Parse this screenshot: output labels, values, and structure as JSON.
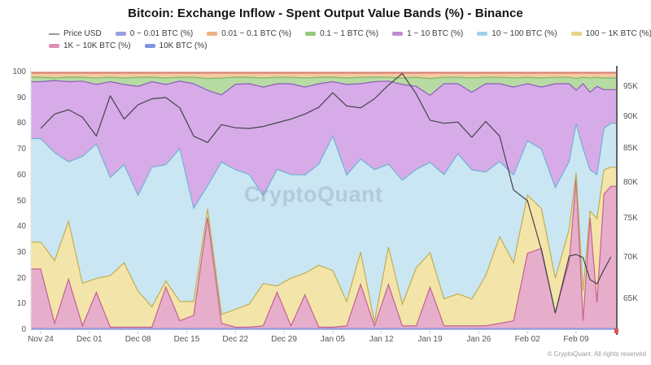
{
  "title": "Bitcoin: Exchange Inflow - Spent Output Value Bands (%) - Binance",
  "watermark": "CryptoQuant",
  "footer": "© CryptoQuant. All rights reserved",
  "legend_rows": [
    [
      {
        "label": "Price USD",
        "type": "line",
        "color": "#9a9a9a"
      },
      {
        "label": "0 ~ 0.01 BTC (%)",
        "type": "area",
        "color": "#98a0e0"
      },
      {
        "label": "0.01 ~ 0.1 BTC (%)",
        "type": "area",
        "color": "#f0b184"
      },
      {
        "label": "0.1 ~ 1 BTC (%)",
        "type": "area",
        "color": "#93c878"
      },
      {
        "label": "1 ~ 10 BTC (%)",
        "type": "area",
        "color": "#c08ad8"
      },
      {
        "label": "10 ~ 100 BTC (%)",
        "type": "area",
        "color": "#a2d2e8"
      },
      {
        "label": "100 ~ 1K BTC (%)",
        "type": "area",
        "color": "#e8d388"
      }
    ],
    [
      {
        "label": "1K ~ 10K BTC (%)",
        "type": "area",
        "color": "#dc8fb4"
      },
      {
        "label": "10K BTC (%)",
        "type": "area",
        "color": "#7e96e0"
      }
    ]
  ],
  "axes": {
    "left_ticks": [
      0,
      10,
      20,
      30,
      40,
      50,
      60,
      70,
      80,
      90,
      100
    ],
    "right_ticks": [
      {
        "label": "65K",
        "value": 65000
      },
      {
        "label": "70K",
        "value": 70000
      },
      {
        "label": "75K",
        "value": 75000
      },
      {
        "label": "80K",
        "value": 80000
      },
      {
        "label": "85K",
        "value": 85000
      },
      {
        "label": "90K",
        "value": 90000
      },
      {
        "label": "95K",
        "value": 95000
      }
    ],
    "x_ticks": [
      {
        "label": "Nov 24",
        "day": 0
      },
      {
        "label": "Dec 01",
        "day": 7
      },
      {
        "label": "Dec 08",
        "day": 14
      },
      {
        "label": "Dec 15",
        "day": 21
      },
      {
        "label": "Dec 22",
        "day": 28
      },
      {
        "label": "Dec 29",
        "day": 35
      },
      {
        "label": "Jan 05",
        "day": 42
      },
      {
        "label": "Jan 12",
        "day": 49
      },
      {
        "label": "Jan 19",
        "day": 56
      },
      {
        "label": "Jan 26",
        "day": 63
      },
      {
        "label": "Feb 02",
        "day": 70
      },
      {
        "label": "Feb 09",
        "day": 77
      }
    ]
  },
  "chart_data": {
    "type": "area",
    "stacked_percent": true,
    "x_axis": "days since Nov 24",
    "x_days": [
      0,
      2,
      4,
      6,
      8,
      10,
      12,
      14,
      16,
      18,
      20,
      22,
      24,
      26,
      28,
      30,
      32,
      34,
      36,
      38,
      40,
      42,
      44,
      46,
      48,
      50,
      52,
      54,
      56,
      58,
      60,
      62,
      64,
      66,
      68,
      70,
      72,
      74,
      76,
      77,
      78,
      79,
      80,
      81,
      82
    ],
    "ylim_left": [
      0,
      100
    ],
    "ylim_right_log": [
      61500,
      97500
    ],
    "series": [
      {
        "name": "10K BTC (%)",
        "fill": "#aeb6e8",
        "stroke": "#8894d8",
        "values": [
          0.6,
          0.6,
          0.6,
          0.6,
          0.6,
          0.6,
          0.6,
          0.6,
          0.6,
          0.6,
          0.6,
          0.6,
          0.6,
          0.6,
          0.6,
          0.6,
          0.6,
          0.6,
          0.6,
          0.6,
          0.6,
          0.6,
          0.6,
          0.6,
          0.6,
          0.6,
          0.6,
          0.6,
          0.6,
          0.6,
          0.6,
          0.6,
          0.6,
          0.6,
          0.6,
          0.6,
          0.6,
          0.6,
          0.6,
          0.6,
          0.6,
          0.6,
          0.6,
          0.6,
          0.6
        ]
      },
      {
        "name": "1K ~ 10K BTC (%)",
        "fill": "#e7aecb",
        "stroke": "#c75f92",
        "values": [
          23,
          2,
          19,
          1,
          14,
          0.5,
          0.5,
          0.5,
          0.5,
          16,
          3,
          5,
          43,
          2,
          0.5,
          0.5,
          1,
          14,
          1,
          13,
          0.5,
          0.5,
          1,
          17,
          1,
          17,
          1,
          1,
          16,
          1,
          1,
          1,
          1,
          2,
          3,
          29,
          31,
          6,
          26,
          58,
          3,
          43,
          10,
          52,
          55
        ]
      },
      {
        "name": "100 ~ 1K BTC (%)",
        "fill": "#f3e5a9",
        "stroke": "#bfae54",
        "values": [
          10.4,
          24.4,
          22.4,
          16.4,
          5.4,
          19.9,
          24.9,
          13.9,
          7.9,
          2.4,
          7.4,
          5.4,
          3.4,
          3.4,
          6.9,
          8.9,
          16.4,
          2.4,
          18.4,
          8.4,
          23.9,
          21.9,
          9.4,
          12.4,
          1.4,
          14.4,
          8.4,
          22.4,
          13.4,
          10.4,
          12.4,
          10.4,
          19.4,
          33.4,
          22.4,
          22.4,
          15.4,
          13.4,
          12.4,
          2.4,
          11.4,
          2.4,
          32.4,
          9.4,
          7.4
        ]
      },
      {
        "name": "10 ~ 100 BTC (%)",
        "fill": "#c9e6f2",
        "stroke": "#72b0d4",
        "values": [
          40,
          42,
          23,
          49,
          52,
          38,
          38,
          37,
          54,
          45,
          59,
          36,
          9,
          59,
          54,
          50,
          34,
          45,
          40,
          38,
          39,
          52,
          49,
          36,
          59,
          32,
          48,
          38,
          35,
          48,
          54,
          50,
          40,
          29,
          34,
          21,
          23,
          35,
          26,
          19,
          55,
          16,
          17,
          16,
          17
        ]
      },
      {
        "name": "1 ~ 10 BTC (%)",
        "fill": "#d7abe8",
        "stroke": "#8d5fb8",
        "values": [
          22,
          28,
          31,
          29,
          23,
          37,
          31,
          42,
          33,
          31,
          26,
          48,
          37,
          26,
          33,
          35,
          42,
          33,
          35,
          34,
          31,
          21,
          35,
          29,
          34,
          32,
          37,
          32,
          26,
          35,
          27,
          30,
          34,
          30,
          34,
          22,
          24,
          40,
          30,
          13,
          25,
          30,
          34,
          15,
          13
        ]
      },
      {
        "name": "0.1 ~ 1 BTC (%)",
        "fill": "#b8dba4",
        "stroke": "#7fb763",
        "values": [
          1.7,
          1.0,
          1.7,
          1.5,
          2.5,
          1.7,
          2.5,
          3.5,
          1.7,
          2.5,
          1.5,
          2.5,
          4.5,
          6.5,
          2.7,
          2.5,
          3.5,
          2.5,
          2.5,
          3.5,
          2.5,
          1.7,
          2.5,
          2.5,
          1.7,
          1.5,
          2.5,
          3.5,
          6.5,
          2.5,
          2.5,
          5.5,
          2.5,
          2.5,
          3.5,
          2.5,
          3.5,
          2.5,
          2.5,
          4.5,
          2.5,
          5.5,
          3.5,
          4.5,
          4.5
        ]
      },
      {
        "name": "0.01 ~ 0.1 BTC (%)",
        "fill": "#f5caa2",
        "stroke": "#e59a78",
        "values": [
          1.5,
          1.8,
          1.5,
          1.5,
          1.8,
          1.5,
          1.8,
          1.5,
          1.5,
          1.8,
          1.5,
          1.5,
          2.0,
          1.8,
          1.5,
          1.5,
          1.8,
          1.5,
          1.5,
          1.8,
          1.5,
          1.5,
          1.8,
          1.5,
          1.5,
          1.5,
          1.8,
          1.5,
          2.0,
          1.5,
          1.5,
          1.8,
          1.5,
          1.5,
          1.8,
          1.5,
          1.8,
          1.5,
          1.5,
          2.0,
          1.5,
          1.8,
          1.5,
          1.8,
          1.8
        ]
      },
      {
        "name": "0 ~ 0.01 BTC (%)",
        "fill": "#b3aae2",
        "stroke": "#d97368",
        "values": [
          0.4,
          0.4,
          0.4,
          0.4,
          0.4,
          0.4,
          0.4,
          0.4,
          0.4,
          0.4,
          0.4,
          0.4,
          0.4,
          0.4,
          0.4,
          0.4,
          0.4,
          0.4,
          0.4,
          0.4,
          0.4,
          0.4,
          0.4,
          0.4,
          0.4,
          0.4,
          0.4,
          0.4,
          0.4,
          0.4,
          0.4,
          0.4,
          0.4,
          0.4,
          0.4,
          0.4,
          0.4,
          0.4,
          0.4,
          0.4,
          0.4,
          0.4,
          0.4,
          0.4,
          0.4
        ]
      }
    ],
    "price_line": {
      "name": "Price USD",
      "color": "#43434b",
      "axis": "right",
      "scale": "log",
      "values": [
        88200,
        90500,
        91200,
        90000,
        87000,
        93500,
        89700,
        92000,
        93000,
        93200,
        91500,
        87000,
        86000,
        88800,
        88300,
        88200,
        88500,
        89100,
        89700,
        90500,
        91600,
        94000,
        91800,
        91500,
        93000,
        95300,
        97300,
        93800,
        89500,
        89000,
        89200,
        86800,
        89300,
        87000,
        79000,
        77500,
        71000,
        63400,
        70200,
        70400,
        70000,
        67300,
        66800,
        68500,
        70100
      ]
    }
  }
}
